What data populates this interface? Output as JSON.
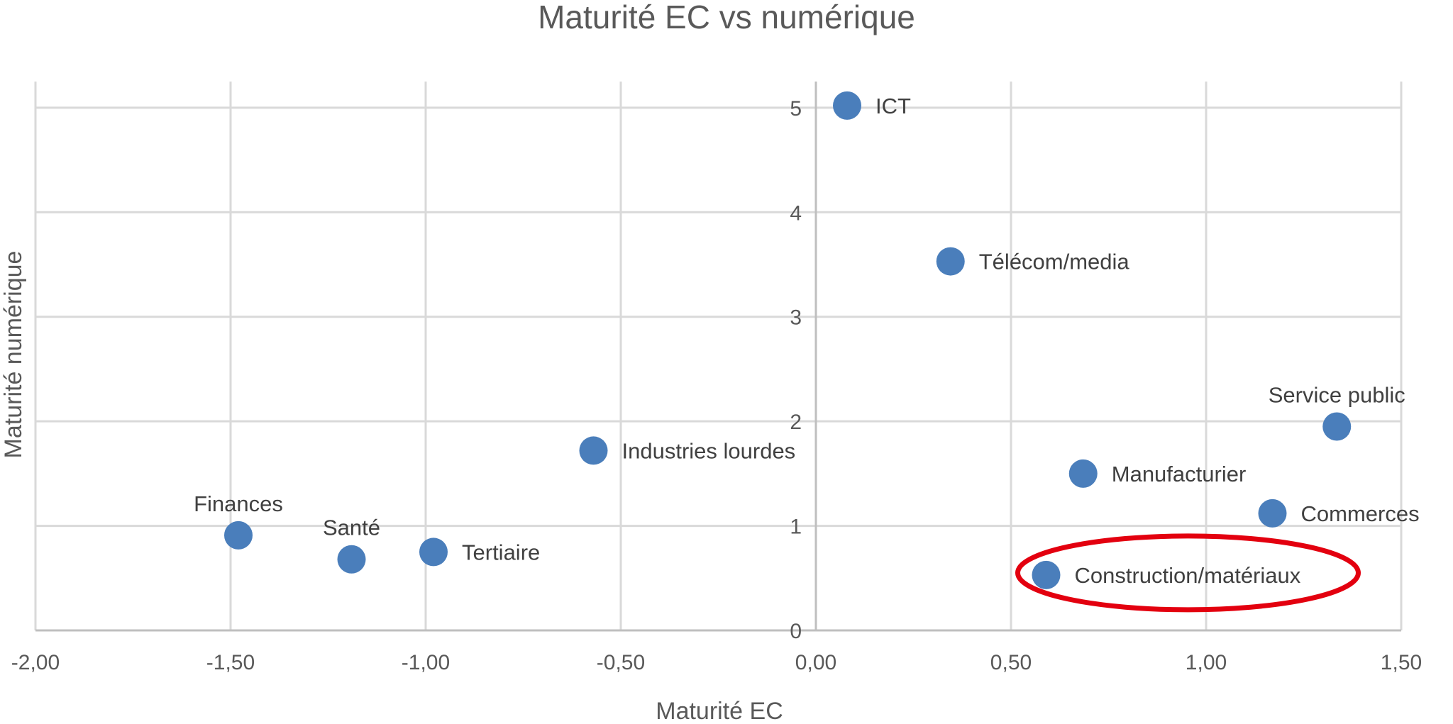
{
  "chart_data": {
    "type": "scatter",
    "title": "Maturité EC vs numérique",
    "xlabel": "Maturité EC",
    "ylabel": "Maturité numérique",
    "xlim": [
      -2.0,
      1.5
    ],
    "ylim": [
      0,
      5.25
    ],
    "x_ticks": [
      -2.0,
      -1.5,
      -1.0,
      -0.5,
      0.0,
      0.5,
      1.0,
      1.5
    ],
    "x_tick_labels": [
      "-2,00",
      "-1,50",
      "-1,00",
      "-0,50",
      "0,00",
      "0,50",
      "1,00",
      "1,50"
    ],
    "y_ticks": [
      0,
      1,
      2,
      3,
      4,
      5
    ],
    "y_tick_labels": [
      "0",
      "1",
      "2",
      "3",
      "4",
      "5"
    ],
    "grid": true,
    "marker_color": "#4a7ebb",
    "highlight_color": "#e3000f",
    "highlight_point": "Construction/matériaux",
    "points": [
      {
        "label": "ICT",
        "x": 0.08,
        "y": 5.02,
        "label_pos": "right"
      },
      {
        "label": "Télécom/media",
        "x": 0.345,
        "y": 3.53,
        "label_pos": "right"
      },
      {
        "label": "Service public",
        "x": 1.335,
        "y": 1.95,
        "label_pos": "above"
      },
      {
        "label": "Industries lourdes",
        "x": -0.57,
        "y": 1.72,
        "label_pos": "right"
      },
      {
        "label": "Manufacturier",
        "x": 0.685,
        "y": 1.5,
        "label_pos": "right"
      },
      {
        "label": "Commerces",
        "x": 1.17,
        "y": 1.12,
        "label_pos": "right"
      },
      {
        "label": "Finances",
        "x": -1.48,
        "y": 0.91,
        "label_pos": "above"
      },
      {
        "label": "Santé",
        "x": -1.19,
        "y": 0.68,
        "label_pos": "above"
      },
      {
        "label": "Tertiaire",
        "x": -0.98,
        "y": 0.75,
        "label_pos": "right"
      },
      {
        "label": "Construction/matériaux",
        "x": 0.59,
        "y": 0.53,
        "label_pos": "right"
      }
    ]
  }
}
